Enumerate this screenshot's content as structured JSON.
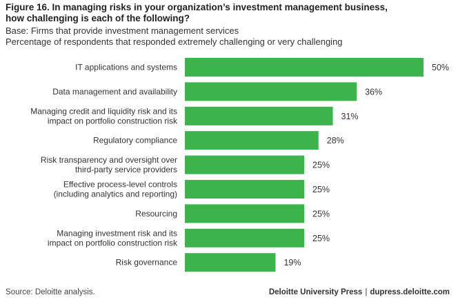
{
  "header": {
    "title": "Figure 16. In managing risks in your organization’s investment management business,\nhow challenging is each of the following?",
    "base": "Base: Firms that provide investment management services",
    "measure": "Percentage of respondents that responded extremely challenging or very challenging"
  },
  "chart_data": {
    "type": "bar",
    "orientation": "horizontal",
    "categories": [
      [
        "IT applications and systems"
      ],
      [
        "Data management and availability"
      ],
      [
        "Managing credit and liquidity risk and its",
        "impact on portfolio construction risk"
      ],
      [
        "Regulatory compliance"
      ],
      [
        "Risk transparency and oversight over",
        "third-party service providers"
      ],
      [
        "Effective process-level controls",
        "(including analytics and reporting)"
      ],
      [
        "Resourcing"
      ],
      [
        "Managing investment risk and its",
        "impact on portfolio construction risk"
      ],
      [
        "Risk governance"
      ]
    ],
    "values": [
      50,
      36,
      31,
      28,
      25,
      25,
      25,
      25,
      19
    ],
    "value_labels": [
      "50%",
      "36%",
      "31%",
      "28%",
      "25%",
      "25%",
      "25%",
      "25%",
      "19%"
    ],
    "bar_color": "#3cb44b",
    "xlim": [
      0,
      50
    ],
    "grid": false,
    "legend": "none"
  },
  "footer": {
    "source": "Source: Deloitte analysis.",
    "publisher": "Deloitte University Press",
    "separator": "|",
    "website": "dupress.deloitte.com"
  }
}
